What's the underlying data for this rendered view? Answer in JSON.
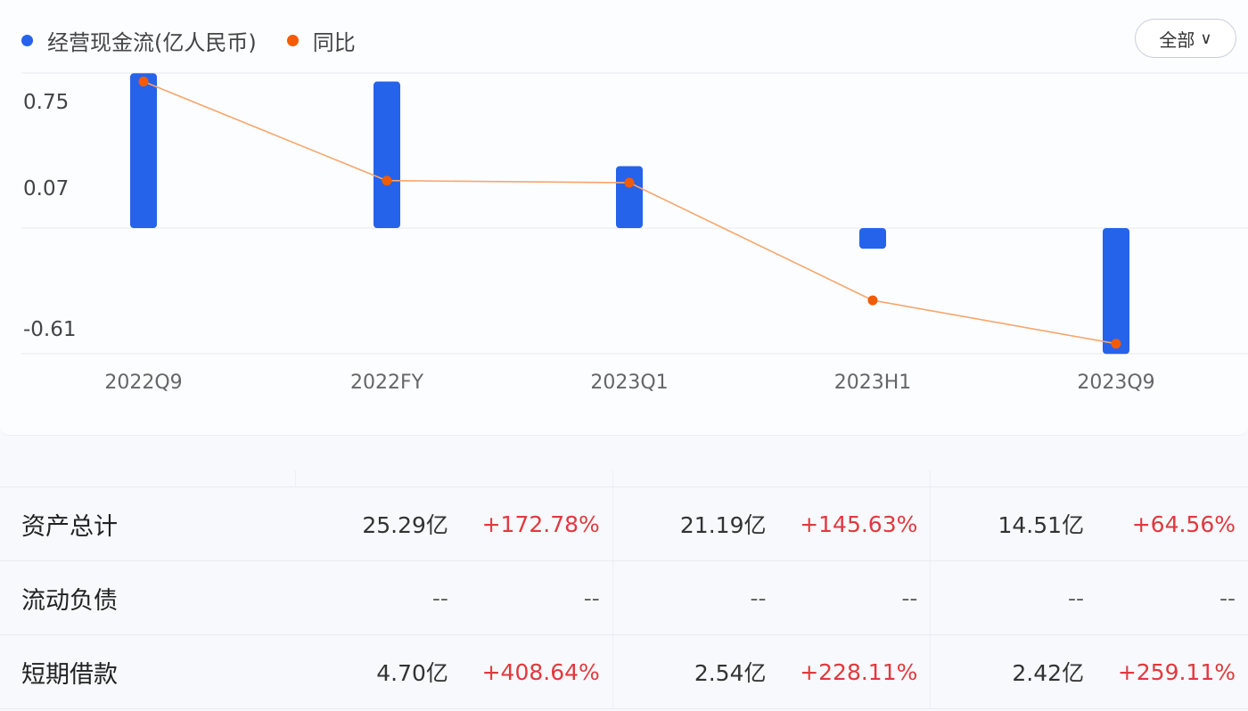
{
  "legend": [
    {
      "label": "经营现金流(亿人民币)",
      "color": "#2563eb"
    },
    {
      "label": "同比",
      "color": "#f25c05"
    }
  ],
  "filter_button": {
    "label": "全部",
    "icon": "chevron-down-icon"
  },
  "chart_data": {
    "type": "bar+line",
    "categories": [
      "2022Q9",
      "2022FY",
      "2023Q1",
      "2023H1",
      "2023Q9"
    ],
    "y_ticks": [
      "0.75",
      "0.07",
      "-0.61"
    ],
    "ylim": [
      -0.61,
      0.75
    ],
    "grid": true,
    "legend_position": "top-left",
    "series": [
      {
        "name": "经营现金流(亿人民币)",
        "type": "bar",
        "color": "#2563eb",
        "values": [
          0.75,
          0.71,
          0.3,
          -0.1,
          -0.61
        ]
      },
      {
        "name": "同比",
        "type": "line",
        "color": "#f25c05",
        "values": [
          0.71,
          0.23,
          0.22,
          -0.35,
          -0.56
        ]
      }
    ]
  },
  "table": {
    "rows": [
      {
        "label": "资产总计",
        "cells": [
          [
            "25.29亿",
            "+172.78%"
          ],
          [
            "21.19亿",
            "+145.63%"
          ],
          [
            "14.51亿",
            "+64.56%"
          ]
        ]
      },
      {
        "label": "流动负债",
        "cells": [
          [
            "--",
            "--"
          ],
          [
            "--",
            "--"
          ],
          [
            "--",
            "--"
          ]
        ]
      },
      {
        "label": "短期借款",
        "cells": [
          [
            "4.70亿",
            "+408.64%"
          ],
          [
            "2.54亿",
            "+228.11%"
          ],
          [
            "2.42亿",
            "+259.11%"
          ]
        ]
      }
    ]
  }
}
